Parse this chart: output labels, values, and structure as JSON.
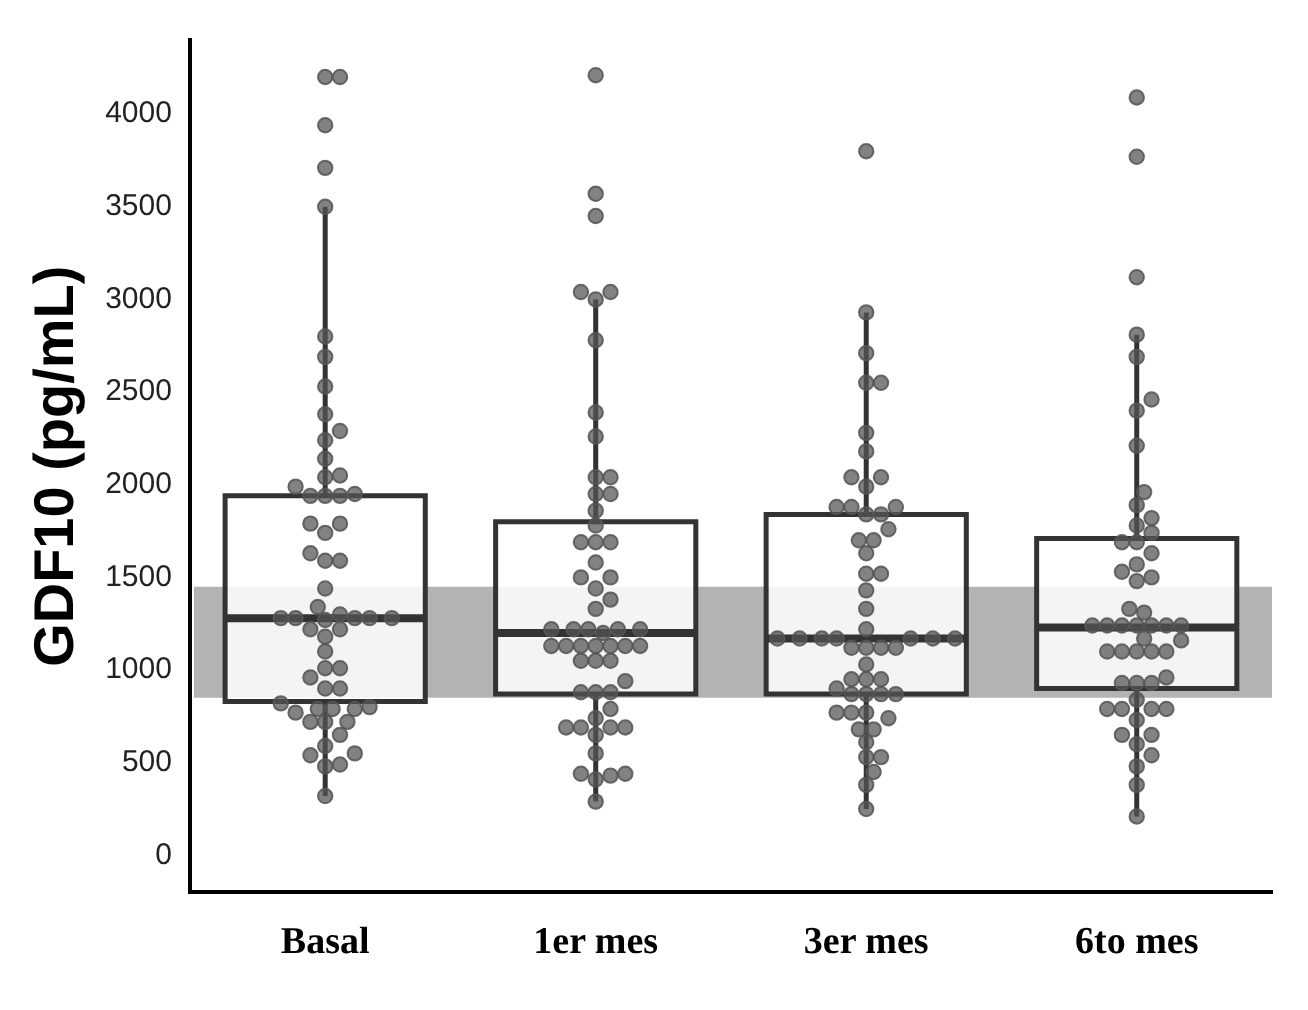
{
  "chart_data": {
    "type": "box",
    "ylabel": "GDF10 (pg/mL)",
    "categories": [
      "Basal",
      "1er mes",
      "3er mes",
      "6to mes"
    ],
    "boxes": [
      {
        "low": 320,
        "q1": 830,
        "median": 1280,
        "q3": 1940,
        "high": 3500
      },
      {
        "low": 290,
        "q1": 870,
        "median": 1200,
        "q3": 1800,
        "high": 3000
      },
      {
        "low": 250,
        "q1": 870,
        "median": 1170,
        "q3": 1840,
        "high": 2930
      },
      {
        "low": 210,
        "q1": 900,
        "median": 1230,
        "q3": 1710,
        "high": 2810
      }
    ],
    "series": [
      {
        "type": "scatter",
        "color": "#555555",
        "x": [
          "Basal",
          "Basal",
          "Basal",
          "Basal",
          "Basal",
          "Basal",
          "Basal",
          "Basal",
          "Basal",
          "Basal",
          "Basal",
          "Basal",
          "Basal",
          "Basal",
          "Basal",
          "Basal",
          "Basal",
          "Basal",
          "Basal",
          "Basal",
          "Basal",
          "Basal",
          "Basal",
          "Basal",
          "Basal",
          "Basal",
          "Basal",
          "Basal",
          "Basal",
          "Basal",
          "Basal",
          "Basal",
          "Basal",
          "Basal",
          "Basal",
          "Basal",
          "Basal",
          "Basal",
          "Basal",
          "Basal",
          "Basal",
          "Basal",
          "Basal",
          "Basal",
          "Basal",
          "Basal",
          "Basal",
          "Basal",
          "Basal",
          "Basal",
          "Basal",
          "Basal",
          "Basal",
          "Basal",
          "Basal",
          "Basal",
          "Basal",
          "Basal",
          "Basal",
          "1er mes",
          "1er mes",
          "1er mes",
          "1er mes",
          "1er mes",
          "1er mes",
          "1er mes",
          "1er mes",
          "1er mes",
          "1er mes",
          "1er mes",
          "1er mes",
          "1er mes",
          "1er mes",
          "1er mes",
          "1er mes",
          "1er mes",
          "1er mes",
          "1er mes",
          "1er mes",
          "1er mes",
          "1er mes",
          "1er mes",
          "1er mes",
          "1er mes",
          "1er mes",
          "1er mes",
          "1er mes",
          "1er mes",
          "1er mes",
          "1er mes",
          "1er mes",
          "1er mes",
          "1er mes",
          "1er mes",
          "1er mes",
          "1er mes",
          "1er mes",
          "1er mes",
          "1er mes",
          "1er mes",
          "1er mes",
          "1er mes",
          "1er mes",
          "1er mes",
          "1er mes",
          "1er mes",
          "1er mes",
          "1er mes",
          "1er mes",
          "1er mes",
          "1er mes",
          "1er mes",
          "1er mes",
          "1er mes",
          "1er mes",
          "1er mes",
          "3er mes",
          "3er mes",
          "3er mes",
          "3er mes",
          "3er mes",
          "3er mes",
          "3er mes",
          "3er mes",
          "3er mes",
          "3er mes",
          "3er mes",
          "3er mes",
          "3er mes",
          "3er mes",
          "3er mes",
          "3er mes",
          "3er mes",
          "3er mes",
          "3er mes",
          "3er mes",
          "3er mes",
          "3er mes",
          "3er mes",
          "3er mes",
          "3er mes",
          "3er mes",
          "3er mes",
          "3er mes",
          "3er mes",
          "3er mes",
          "3er mes",
          "3er mes",
          "3er mes",
          "3er mes",
          "3er mes",
          "3er mes",
          "3er mes",
          "3er mes",
          "3er mes",
          "3er mes",
          "3er mes",
          "3er mes",
          "3er mes",
          "3er mes",
          "3er mes",
          "3er mes",
          "3er mes",
          "3er mes",
          "3er mes",
          "3er mes",
          "3er mes",
          "3er mes",
          "3er mes",
          "3er mes",
          "3er mes",
          "3er mes",
          "6to mes",
          "6to mes",
          "6to mes",
          "6to mes",
          "6to mes",
          "6to mes",
          "6to mes",
          "6to mes",
          "6to mes",
          "6to mes",
          "6to mes",
          "6to mes",
          "6to mes",
          "6to mes",
          "6to mes",
          "6to mes",
          "6to mes",
          "6to mes",
          "6to mes",
          "6to mes",
          "6to mes",
          "6to mes",
          "6to mes",
          "6to mes",
          "6to mes",
          "6to mes",
          "6to mes",
          "6to mes",
          "6to mes",
          "6to mes",
          "6to mes",
          "6to mes",
          "6to mes",
          "6to mes",
          "6to mes",
          "6to mes",
          "6to mes",
          "6to mes",
          "6to mes",
          "6to mes",
          "6to mes",
          "6to mes",
          "6to mes",
          "6to mes",
          "6to mes",
          "6to mes",
          "6to mes",
          "6to mes",
          "6to mes",
          "6to mes",
          "6to mes",
          "6to mes",
          "6to mes"
        ],
        "values": [
          4200,
          4200,
          3940,
          3710,
          3500,
          2800,
          2690,
          2530,
          2380,
          2290,
          2240,
          2140,
          2040,
          2050,
          1990,
          1940,
          1940,
          1940,
          1950,
          1790,
          1790,
          1740,
          1630,
          1590,
          1590,
          1440,
          1340,
          1300,
          1280,
          1280,
          1280,
          1280,
          1280,
          1270,
          1220,
          1220,
          1180,
          1100,
          1010,
          1010,
          960,
          900,
          900,
          820,
          800,
          790,
          790,
          790,
          770,
          720,
          720,
          720,
          650,
          590,
          550,
          540,
          490,
          480,
          320,
          4210,
          3570,
          3450,
          3040,
          3000,
          3040,
          2780,
          2390,
          2260,
          2040,
          2040,
          1950,
          1950,
          1860,
          1780,
          1690,
          1690,
          1690,
          1580,
          1500,
          1500,
          1440,
          1380,
          1330,
          1220,
          1220,
          1220,
          1220,
          1220,
          1200,
          1130,
          1130,
          1130,
          1130,
          1130,
          1130,
          1130,
          1050,
          1050,
          1050,
          940,
          880,
          880,
          880,
          790,
          740,
          690,
          690,
          690,
          690,
          650,
          550,
          440,
          440,
          430,
          410,
          290,
          3800,
          2930,
          2710,
          2550,
          2550,
          2280,
          2180,
          2040,
          2040,
          1990,
          1880,
          1880,
          1880,
          1840,
          1840,
          1760,
          1700,
          1700,
          1630,
          1520,
          1520,
          1430,
          1330,
          1220,
          1170,
          1170,
          1170,
          1170,
          1170,
          1170,
          1170,
          1120,
          1120,
          1120,
          1120,
          1030,
          950,
          950,
          950,
          900,
          870,
          870,
          870,
          870,
          770,
          770,
          770,
          740,
          680,
          680,
          610,
          530,
          530,
          450,
          380,
          250,
          4090,
          3770,
          3120,
          2810,
          2690,
          2460,
          2400,
          2210,
          1960,
          1890,
          1820,
          1780,
          1740,
          1690,
          1690,
          1630,
          1570,
          1530,
          1500,
          1480,
          1330,
          1310,
          1240,
          1240,
          1240,
          1240,
          1240,
          1240,
          1240,
          1170,
          1160,
          1100,
          1100,
          1100,
          1100,
          1100,
          960,
          930,
          930,
          930,
          840,
          790,
          790,
          790,
          790,
          730,
          650,
          650,
          600,
          540,
          480,
          380,
          210
        ]
      }
    ],
    "bands": [
      {
        "axis": "y",
        "from": 850,
        "to": 1450,
        "color": "#b3b3b3"
      }
    ],
    "ylim": [
      -200,
      4400
    ],
    "yticks": [
      0,
      500,
      1000,
      1500,
      2000,
      2500,
      3000,
      3500,
      4000
    ],
    "grid": false,
    "legend": false,
    "marker": "circle"
  }
}
